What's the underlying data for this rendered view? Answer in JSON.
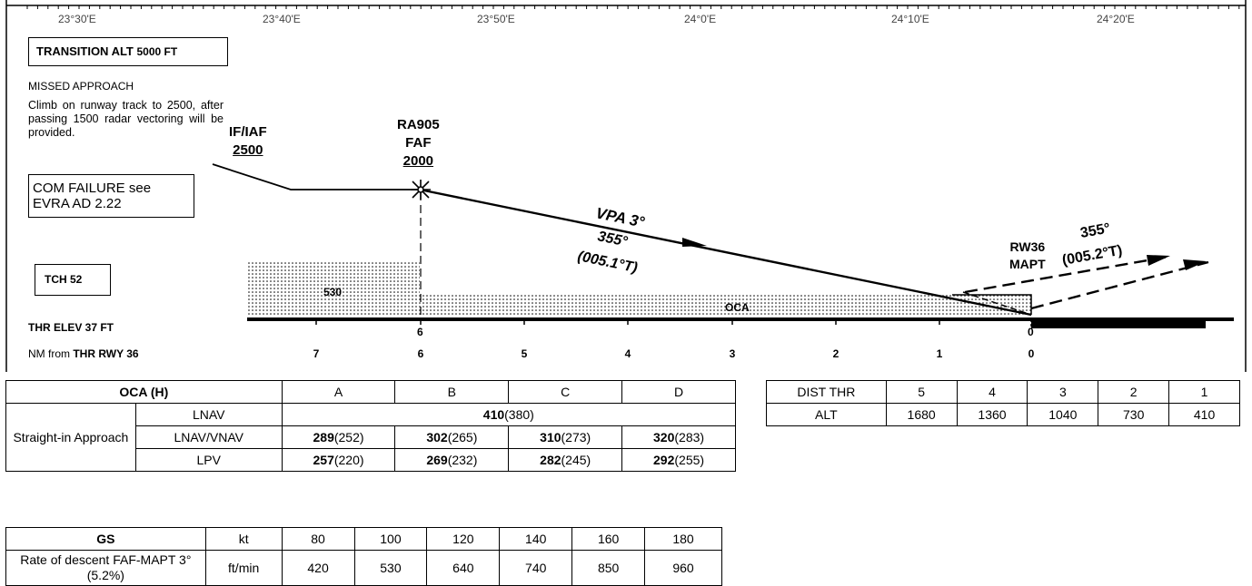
{
  "longitudes": [
    "23°30'E",
    "23°40'E",
    "23°50'E",
    "24°0'E",
    "24°10'E",
    "24°20'E"
  ],
  "transition": {
    "prefix": "TRANSITION ALT ",
    "value": "5000 FT"
  },
  "missed": {
    "title": "MISSED APPROACH",
    "text": "Climb on runway track to 2500, after passing 1500 radar vectoring will be provided."
  },
  "com_failure": "COM FAILURE see EVRA AD 2.22",
  "tch": "TCH 52",
  "thr_elev": "THR ELEV 37 FT",
  "nm_from": {
    "prefix": "NM from ",
    "bold": "THR RWY 36"
  },
  "iaf": {
    "name": "IF/IAF",
    "alt": "2500"
  },
  "faf": {
    "name1": "RA905",
    "name2": "FAF",
    "alt": "2000"
  },
  "vpa": "VPA 3°",
  "track1": {
    "mag": "355°",
    "true": "(005.1°T)"
  },
  "mapt": {
    "rw": "RW36",
    "name": "MAPT"
  },
  "track2": {
    "mag": "355°",
    "true": "(005.2°T)"
  },
  "obstacles": {
    "first": "530",
    "oca": "OCA"
  },
  "fix_dist": {
    "faf": "6",
    "thr": "0"
  },
  "nm_scale": [
    "7",
    "6",
    "5",
    "4",
    "3",
    "2",
    "1",
    "0"
  ],
  "oca_table": {
    "header": {
      "title": "OCA (H)",
      "cats": [
        "A",
        "B",
        "C",
        "D"
      ]
    },
    "group": "Straight-in Approach",
    "rows": [
      {
        "label": "LNAV",
        "all_bold": "410",
        "all_rest": "(380)"
      },
      {
        "label": "LNAV/VNAV",
        "bold": [
          "289",
          "302",
          "310",
          "320"
        ],
        "rest": [
          "(252)",
          "(265)",
          "(273)",
          "(283)"
        ]
      },
      {
        "label": "LPV",
        "bold": [
          "257",
          "269",
          "282",
          "292"
        ],
        "rest": [
          "(220)",
          "(232)",
          "(245)",
          "(255)"
        ]
      }
    ]
  },
  "dist_table": {
    "h1": "DIST THR",
    "h2": "ALT",
    "dist": [
      "5",
      "4",
      "3",
      "2",
      "1"
    ],
    "alt": [
      "1680",
      "1360",
      "1040",
      "730",
      "410"
    ]
  },
  "gs_table": {
    "gs": "GS",
    "unit_kt": "kt",
    "speeds": [
      "80",
      "100",
      "120",
      "140",
      "160",
      "180"
    ],
    "rod_label": "Rate of descent FAF-MAPT 3° (5.2%)",
    "unit_rod": "ft/min",
    "rod": [
      "420",
      "530",
      "640",
      "740",
      "850",
      "960"
    ]
  }
}
